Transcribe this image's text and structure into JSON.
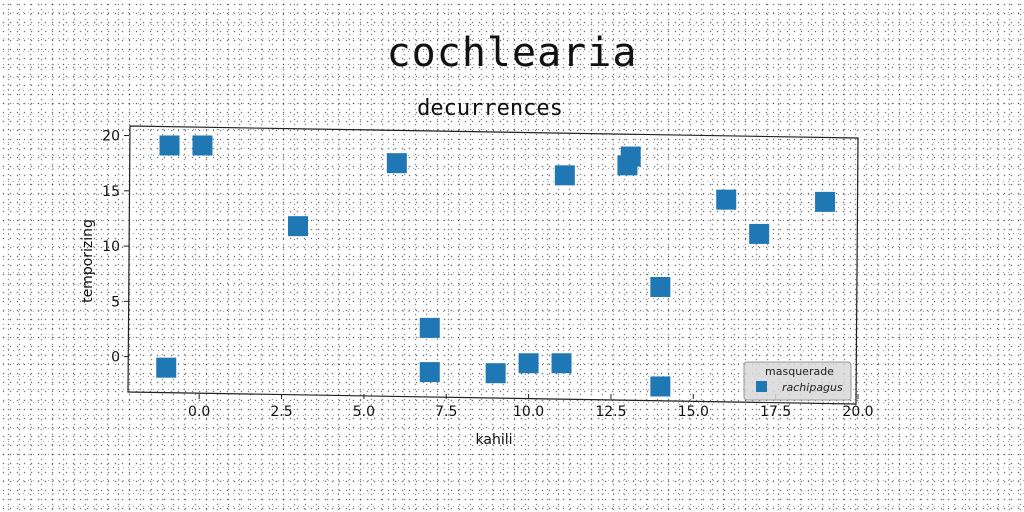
{
  "chart_data": {
    "type": "scatter",
    "title": "cochlearia",
    "subtitle": "decurrences",
    "xlabel": "kahili",
    "ylabel": "temporizing",
    "xlim": [
      -2.1,
      20.0
    ],
    "ylim": [
      -3.2,
      20.5
    ],
    "xticks": [
      "0.0",
      "2.5",
      "5.0",
      "7.5",
      "10.0",
      "12.5",
      "15.0",
      "17.5",
      "20.0"
    ],
    "yticks": [
      "0",
      "5",
      "10",
      "15",
      "20"
    ],
    "grid": false,
    "marker": "square",
    "color": "#1f77b4",
    "legend": {
      "title": "masquerade",
      "placement": "bottom-right",
      "entries": [
        "rachipagus"
      ]
    },
    "series": [
      {
        "name": "rachipagus",
        "points": [
          {
            "x": -0.9,
            "y": 19.1
          },
          {
            "x": 0.1,
            "y": 19.1
          },
          {
            "x": -1.0,
            "y": -1.0
          },
          {
            "x": 3.0,
            "y": 11.8
          },
          {
            "x": 6.0,
            "y": 17.5
          },
          {
            "x": 7.0,
            "y": 2.6
          },
          {
            "x": 7.0,
            "y": -1.4
          },
          {
            "x": 9.0,
            "y": -1.5
          },
          {
            "x": 10.0,
            "y": -0.6
          },
          {
            "x": 11.0,
            "y": -0.6
          },
          {
            "x": 11.1,
            "y": 16.4
          },
          {
            "x": 13.1,
            "y": 18.1
          },
          {
            "x": 13.0,
            "y": 17.3
          },
          {
            "x": 14.0,
            "y": 6.3
          },
          {
            "x": 14.0,
            "y": -2.7
          },
          {
            "x": 16.0,
            "y": 14.2
          },
          {
            "x": 17.0,
            "y": 11.1
          },
          {
            "x": 19.0,
            "y": 14.0
          }
        ]
      }
    ]
  }
}
